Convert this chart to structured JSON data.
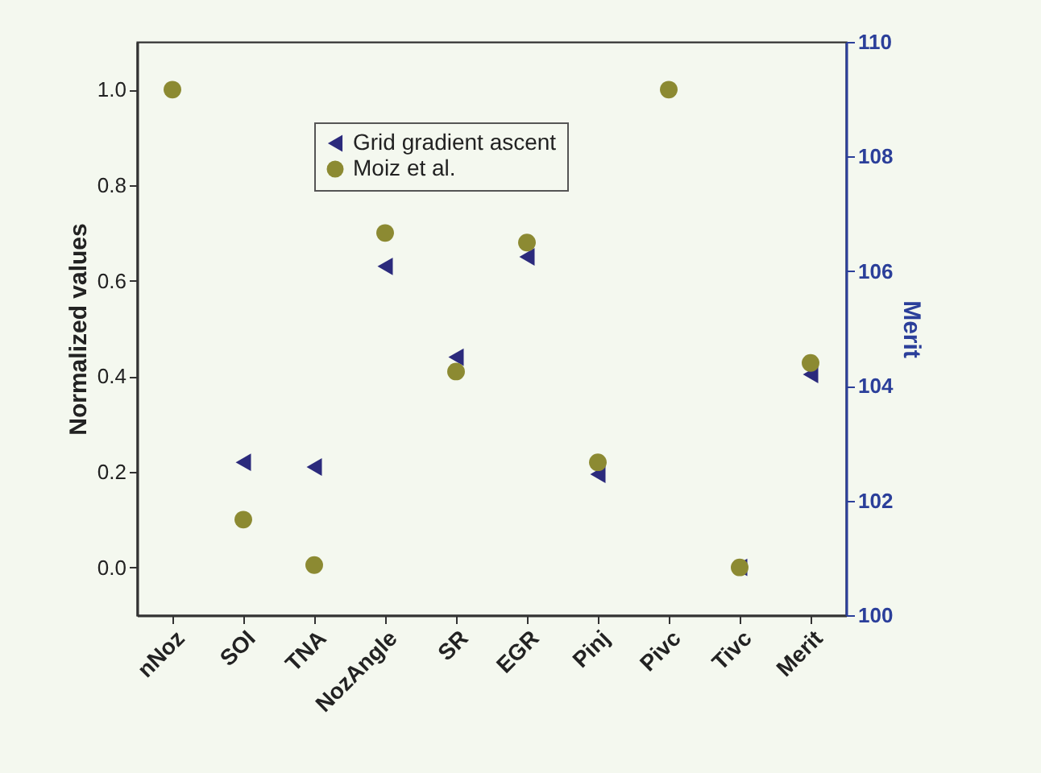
{
  "chart_data": {
    "type": "scatter",
    "ylabel": "Normalized values",
    "y2label": "Merit",
    "categories": [
      "nNoz",
      "SOI",
      "TNA",
      "NozAngle",
      "SR",
      "EGR",
      "Pinj",
      "Pivc",
      "Tivc",
      "Merit"
    ],
    "series": [
      {
        "name": "Grid gradient ascent",
        "color": "#2b2a7c",
        "marker": "triangle",
        "values": [
          null,
          0.22,
          0.21,
          0.63,
          0.44,
          0.65,
          0.195,
          null,
          0.0,
          null
        ]
      },
      {
        "name": "Moiz et al.",
        "color": "#8c8a32",
        "marker": "circle",
        "values": [
          1.0,
          0.1,
          0.005,
          0.7,
          0.41,
          0.68,
          0.22,
          1.0,
          0.0,
          null
        ]
      },
      {
        "color": "#2b2a7c",
        "marker": "triangle",
        "axis": "y2",
        "values": [
          null,
          null,
          null,
          null,
          null,
          null,
          null,
          null,
          null,
          104.2
        ]
      },
      {
        "color": "#8c8a32",
        "marker": "circle",
        "axis": "y2",
        "values": [
          null,
          null,
          null,
          null,
          null,
          null,
          null,
          null,
          null,
          104.4
        ]
      }
    ],
    "ylim": [
      -0.1,
      1.1
    ],
    "yticks": [
      {
        "value": 0,
        "label": "0.0"
      },
      {
        "value": 0.2,
        "label": "0.2"
      },
      {
        "value": 0.4,
        "label": "0.4"
      },
      {
        "value": 0.6,
        "label": "0.6"
      },
      {
        "value": 0.8,
        "label": "0.8"
      },
      {
        "value": 1,
        "label": "1.0"
      }
    ],
    "y2lim": [
      100,
      110
    ],
    "y2ticks": [
      100,
      102,
      104,
      106,
      108,
      110
    ],
    "legend": "top",
    "grid": false
  }
}
